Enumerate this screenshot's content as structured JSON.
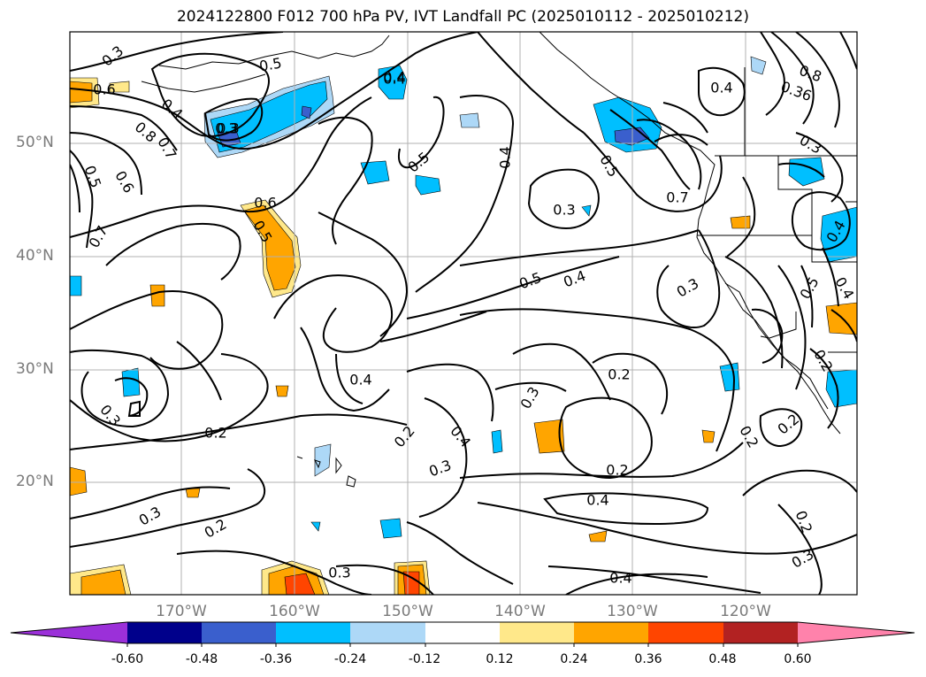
{
  "title": "2024122800 F012 700 hPa PV, IVT Landfall PC (2025010112 - 2025010212)",
  "latitude_labels": [
    "50°N",
    "40°N",
    "30°N",
    "20°N"
  ],
  "longitude_labels": [
    "170°W",
    "160°W",
    "150°W",
    "140°W",
    "130°W",
    "120°W"
  ],
  "colorbar": {
    "tick_labels": [
      "-0.60",
      "-0.48",
      "-0.36",
      "-0.24",
      "-0.12",
      "0.12",
      "0.24",
      "0.36",
      "0.48",
      "0.60"
    ],
    "colors": [
      "#9b30d9",
      "#00008b",
      "#3a5fcd",
      "#00bfff",
      "#add8f7",
      "#ffffff",
      "#ffe88a",
      "#ffa500",
      "#ff4500",
      "#b22222",
      "#ff82ab"
    ]
  },
  "contour_labels": [
    "0.3",
    "0.5",
    "0.4",
    "0.6",
    "0.4",
    "0.3",
    "0.8",
    "0.7",
    "0.5",
    "0.6",
    "0.7",
    "0.6",
    "0.5",
    "0.5",
    "0.4",
    "0.4",
    "0.8",
    "0.36",
    "0.3",
    "0.5",
    "0.7",
    "0.4",
    "0.3",
    "0.5",
    "0.4",
    "0.3",
    "0.3",
    "0.4",
    "0.5",
    "0.4",
    "0.2",
    "0.3",
    "0.2",
    "0.4",
    "0.2",
    "0.3",
    "0.2",
    "0.4",
    "0.3",
    "0.4",
    "0.2",
    "0.2",
    "0.3",
    "0.2",
    "0.3",
    "0.4",
    "0.2",
    "0.3",
    "0.2"
  ]
}
